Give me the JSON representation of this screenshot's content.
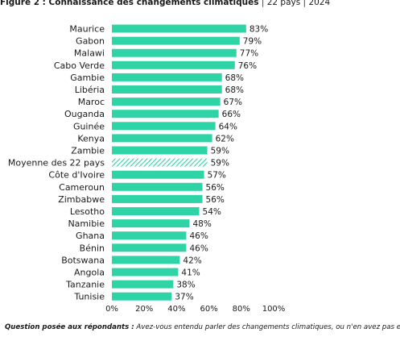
{
  "figure": {
    "title_bold": "Figure 2 : Connaissance des changements climatiques",
    "sep1": "|",
    "countries": "22 pays",
    "sep2": "|",
    "year": "2024"
  },
  "question": {
    "label": "Question posée aux répondants :",
    "text": "Avez-vous entendu parler des changements climatiques, ou n'en avez pas encore entendu parler ?"
  },
  "colors": {
    "bar": "#2ed4a6",
    "average_hatch": "#2ed4a6"
  },
  "chart_data": {
    "type": "bar",
    "orientation": "horizontal",
    "categories": [
      "Maurice",
      "Gabon",
      "Malawi",
      "Cabo Verde",
      "Gambie",
      "Libéria",
      "Maroc",
      "Ouganda",
      "Guinée",
      "Kenya",
      "Zambie",
      "Moyenne des 22 pays",
      "Côte d'Ivoire",
      "Cameroun",
      "Zimbabwe",
      "Lesotho",
      "Namibie",
      "Ghana",
      "Bénin",
      "Botswana",
      "Angola",
      "Tanzanie",
      "Tunisie"
    ],
    "values": [
      83,
      79,
      77,
      76,
      68,
      68,
      67,
      66,
      64,
      62,
      59,
      59,
      57,
      56,
      56,
      54,
      48,
      46,
      46,
      42,
      41,
      38,
      37
    ],
    "data_labels": [
      "83%",
      "79%",
      "77%",
      "76%",
      "68%",
      "68%",
      "67%",
      "66%",
      "64%",
      "62%",
      "59%",
      "59%",
      "57%",
      "56%",
      "56%",
      "54%",
      "48%",
      "46%",
      "46%",
      "42%",
      "41%",
      "38%",
      "37%"
    ],
    "highlight_category": "Moyenne des 22 pays",
    "xlim": [
      0,
      100
    ],
    "x_ticks": [
      0,
      20,
      40,
      60,
      80,
      100
    ],
    "x_tick_labels": [
      "0%",
      "20%",
      "40%",
      "60%",
      "80%",
      "100%"
    ],
    "grid": false
  }
}
